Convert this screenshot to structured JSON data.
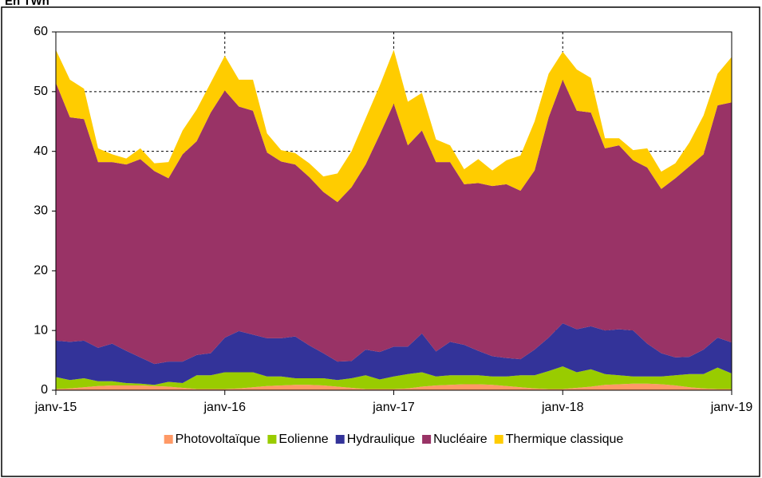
{
  "chart_data": {
    "type": "stacked_area",
    "title": "En TWh",
    "categories": [
      "janv-15",
      null,
      null,
      null,
      null,
      null,
      null,
      null,
      null,
      null,
      null,
      null,
      "janv-16",
      null,
      null,
      null,
      null,
      null,
      null,
      null,
      null,
      null,
      null,
      null,
      "janv-17",
      null,
      null,
      null,
      null,
      null,
      null,
      null,
      null,
      null,
      null,
      null,
      "janv-18",
      null,
      null,
      null,
      null,
      null,
      null,
      null,
      null,
      null,
      null,
      null,
      "janv-19"
    ],
    "series": [
      {
        "name": "Photovoltaïque",
        "color": "#ff9966",
        "values": [
          0.2,
          0.3,
          0.5,
          0.7,
          0.8,
          0.8,
          0.8,
          0.7,
          0.6,
          0.4,
          0.2,
          0.2,
          0.2,
          0.3,
          0.5,
          0.7,
          0.8,
          0.9,
          0.9,
          0.8,
          0.6,
          0.4,
          0.2,
          0.2,
          0.2,
          0.3,
          0.6,
          0.8,
          0.9,
          1.0,
          1.0,
          0.9,
          0.7,
          0.5,
          0.3,
          0.2,
          0.2,
          0.4,
          0.6,
          0.9,
          1.0,
          1.1,
          1.1,
          1.0,
          0.8,
          0.5,
          0.3,
          0.2,
          0.2
        ]
      },
      {
        "name": "Eolienne",
        "color": "#99cc00",
        "values": [
          2.0,
          1.4,
          1.5,
          0.8,
          0.7,
          0.4,
          0.3,
          0.2,
          0.8,
          0.8,
          2.3,
          2.3,
          2.8,
          2.7,
          2.5,
          1.6,
          1.5,
          1.1,
          1.1,
          1.2,
          1.1,
          1.6,
          2.3,
          1.6,
          2.1,
          2.4,
          2.4,
          1.5,
          1.6,
          1.5,
          1.5,
          1.4,
          1.6,
          2.0,
          2.2,
          3.0,
          3.8,
          2.6,
          2.9,
          1.8,
          1.5,
          1.2,
          1.2,
          1.3,
          1.7,
          2.2,
          2.4,
          3.6,
          2.6
        ]
      },
      {
        "name": "Hydraulique",
        "color": "#333399",
        "values": [
          6.1,
          6.4,
          6.3,
          5.6,
          6.3,
          5.4,
          4.4,
          3.5,
          3.4,
          3.6,
          3.4,
          3.7,
          5.8,
          6.9,
          6.3,
          6.4,
          6.4,
          7.0,
          5.5,
          4.2,
          3.1,
          2.9,
          4.3,
          4.6,
          5.0,
          4.6,
          6.5,
          4.2,
          5.6,
          5.1,
          4.1,
          3.4,
          3.1,
          2.7,
          4.3,
          5.6,
          7.2,
          7.2,
          7.2,
          7.3,
          7.7,
          7.7,
          5.5,
          3.9,
          3.0,
          2.9,
          4.1,
          5.0,
          5.2
        ]
      },
      {
        "name": "Nucléaire",
        "color": "#993366",
        "values": [
          43.2,
          37.6,
          37.1,
          31.1,
          30.4,
          31.2,
          33.2,
          32.3,
          30.7,
          34.7,
          35.8,
          40.3,
          41.4,
          37.6,
          37.5,
          31.1,
          29.6,
          28.8,
          28.2,
          27.0,
          26.7,
          29.1,
          31.0,
          36.4,
          40.7,
          33.7,
          34.0,
          31.7,
          30.1,
          26.9,
          28.1,
          28.5,
          29.1,
          28.2,
          30.0,
          36.9,
          40.8,
          36.6,
          35.8,
          30.5,
          30.8,
          28.5,
          29.5,
          27.5,
          30.0,
          31.9,
          32.7,
          38.9,
          40.2
        ]
      },
      {
        "name": "Thermique classique",
        "color": "#ffcc00",
        "values": [
          5.5,
          6.3,
          5.1,
          2.3,
          1.3,
          1.0,
          1.8,
          1.3,
          2.7,
          4.0,
          5.3,
          5.0,
          5.8,
          4.5,
          5.2,
          3.2,
          1.9,
          1.9,
          2.3,
          2.6,
          4.8,
          6.0,
          7.7,
          8.2,
          9.0,
          7.3,
          6.3,
          3.8,
          2.8,
          2.5,
          4.0,
          2.6,
          4.0,
          5.9,
          8.2,
          7.3,
          4.7,
          6.9,
          5.8,
          1.7,
          1.2,
          1.7,
          3.2,
          2.9,
          2.5,
          4.0,
          6.5,
          5.3,
          7.6
        ]
      }
    ],
    "ylim": [
      0,
      60
    ],
    "yticks": [
      0,
      10,
      20,
      30,
      40,
      50,
      60
    ],
    "grid": true,
    "legend": "bottom"
  }
}
